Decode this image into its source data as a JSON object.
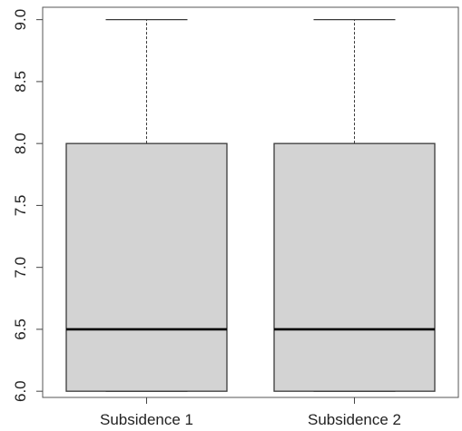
{
  "chart_data": {
    "type": "box",
    "categories": [
      "Subsidence 1",
      "Subsidence 2"
    ],
    "boxes": [
      {
        "name": "Subsidence 1",
        "min": 6.0,
        "q1": 6.0,
        "median": 6.5,
        "q3": 8.0,
        "max": 9.0
      },
      {
        "name": "Subsidence 2",
        "min": 6.0,
        "q1": 6.0,
        "median": 6.5,
        "q3": 8.0,
        "max": 9.0
      }
    ],
    "y_ticks": [
      "6.0",
      "6.5",
      "7.0",
      "7.5",
      "8.0",
      "8.5",
      "9.0"
    ],
    "ylim": [
      5.95,
      9.1
    ],
    "grid": false,
    "box_fill": "#d3d3d3",
    "stroke": "#3a3a3a",
    "median_color": "#000000"
  }
}
